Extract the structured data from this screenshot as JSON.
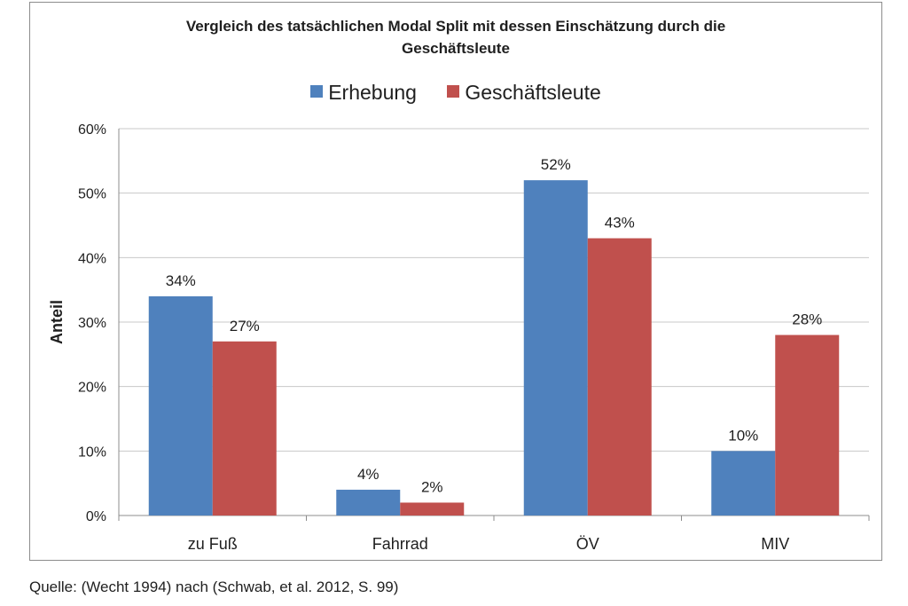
{
  "chart_data": {
    "type": "bar",
    "title": "Vergleich des tatsächlichen Modal Split mit dessen Einschätzung durch die Geschäftsleute",
    "title_lines": [
      "Vergleich des tatsächlichen Modal Split mit dessen Einschätzung durch die",
      "Geschäftsleute"
    ],
    "categories": [
      "zu Fuß",
      "Fahrrad",
      "ÖV",
      "MIV"
    ],
    "series": [
      {
        "name": "Erhebung",
        "values": [
          34,
          4,
          52,
          10
        ],
        "labels": [
          "34%",
          "4%",
          "52%",
          "10%"
        ],
        "color": "#4f81bd"
      },
      {
        "name": "Geschäftsleute",
        "values": [
          27,
          2,
          43,
          28
        ],
        "labels": [
          "27%",
          "2%",
          "43%",
          "28%"
        ],
        "color": "#c0504d"
      }
    ],
    "xlabel": "",
    "ylabel": "Anteil",
    "ylim": [
      0,
      60
    ],
    "yticks": [
      0,
      10,
      20,
      30,
      40,
      50,
      60
    ],
    "ytick_labels": [
      "0%",
      "10%",
      "20%",
      "30%",
      "40%",
      "50%",
      "60%"
    ],
    "grid": true,
    "legend_position": "top"
  },
  "source": "Quelle: (Wecht 1994) nach (Schwab, et al. 2012, S. 99)"
}
